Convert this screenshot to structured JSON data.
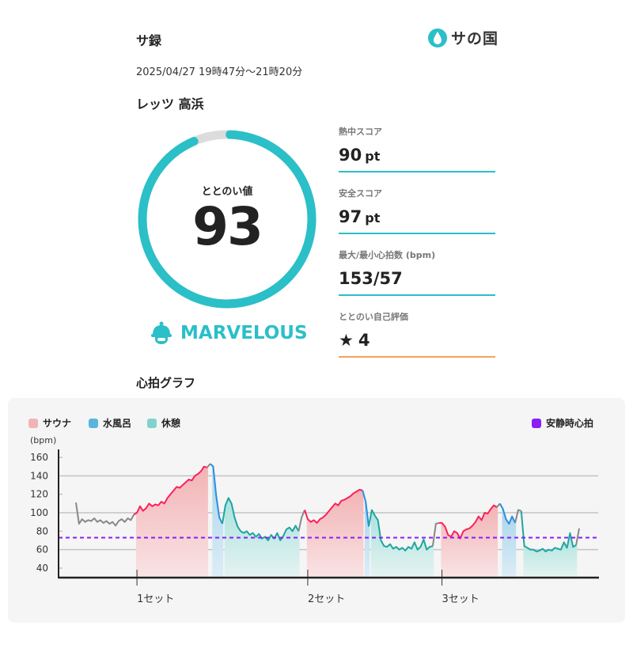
{
  "header": {
    "title": "サ録",
    "logo_text": "サの国",
    "logo_icon": "water-drop-icon"
  },
  "session": {
    "datetime": "2025/04/27 19時47分〜21時20分",
    "venue": "レッツ 高浜"
  },
  "totonoi": {
    "label": "ととのい値",
    "value": "93",
    "percent": 93,
    "rank": "MARVELOUS",
    "rank_icon": "sauna-hat-icon"
  },
  "stats": [
    {
      "label": "熱中スコア",
      "value": "90",
      "unit": "pt"
    },
    {
      "label": "安全スコア",
      "value": "97",
      "unit": "pt"
    },
    {
      "label": "最大/最小心拍数 (bpm)",
      "value": "153/57",
      "unit": ""
    },
    {
      "label": "ととのい自己評価",
      "value": "4",
      "unit": "",
      "icon": "star-icon"
    }
  ],
  "colors": {
    "accent": "#2bbfc8",
    "self_rating_line": "#f5a25d",
    "sauna": "#ff1f5a",
    "cold": "#2a8fe0",
    "rest": "#1fa5a0",
    "other": "#888888",
    "resting": "#8a1ef5"
  },
  "graph_title": "心拍グラフ",
  "chart_data": {
    "type": "line",
    "ylabel": "(bpm)",
    "ylim": [
      30,
      165
    ],
    "yticks": [
      160,
      140,
      120,
      100,
      80,
      60,
      40
    ],
    "grid_lines": [
      140,
      100,
      60
    ],
    "legend": [
      {
        "label": "サウナ",
        "color": "#f2b3b5"
      },
      {
        "label": "水風呂",
        "color": "#5ab4de"
      },
      {
        "label": "休憩",
        "color": "#7fd3cc"
      }
    ],
    "resting_hr": {
      "label": "安静時心拍",
      "value": 73,
      "color": "#8a1ef5"
    },
    "set_labels": [
      "1セット",
      "2セット",
      "3セット"
    ],
    "segments": [
      {
        "phase": "other",
        "values": [
          111,
          88,
          93,
          90,
          92,
          91,
          94,
          90,
          92,
          89,
          91,
          88,
          90,
          86,
          91,
          93,
          90,
          94,
          92,
          98
        ]
      },
      {
        "phase": "sauna",
        "set": 0,
        "values": [
          100,
          107,
          102,
          105,
          110,
          107,
          109,
          108,
          112,
          110,
          116,
          120,
          124,
          128,
          127,
          130,
          133,
          136,
          135,
          140,
          142,
          145,
          150,
          149
        ]
      },
      {
        "phase": "other",
        "values": [
          153
        ]
      },
      {
        "phase": "cold",
        "values": [
          150,
          118,
          95,
          88
        ]
      },
      {
        "phase": "rest",
        "values": [
          108,
          116,
          110,
          95,
          85,
          80,
          78,
          80,
          76,
          78,
          74,
          77,
          72,
          74,
          70,
          76,
          72,
          78,
          70,
          75,
          82,
          84,
          80,
          86,
          80
        ]
      },
      {
        "phase": "other",
        "values": [
          95,
          103
        ]
      },
      {
        "phase": "sauna",
        "set": 1,
        "values": [
          93,
          90,
          92,
          89,
          93,
          95,
          98,
          102,
          106,
          110,
          108,
          113,
          114,
          116,
          118,
          121,
          123,
          125,
          124
        ]
      },
      {
        "phase": "cold",
        "values": [
          112,
          85
        ]
      },
      {
        "phase": "rest",
        "values": [
          103,
          97,
          92,
          70,
          64,
          63,
          66,
          61,
          63,
          60,
          62,
          59,
          63,
          61,
          68,
          60,
          63,
          71,
          60,
          63,
          64
        ]
      },
      {
        "phase": "other",
        "values": [
          88,
          89
        ]
      },
      {
        "phase": "sauna",
        "set": 2,
        "values": [
          89,
          85,
          76,
          74,
          80,
          78,
          72,
          80,
          82,
          83,
          86,
          90,
          96,
          92,
          100,
          99,
          104,
          108,
          106
        ]
      },
      {
        "phase": "other",
        "values": [
          110
        ]
      },
      {
        "phase": "cold",
        "values": [
          104,
          93,
          88,
          96,
          89
        ]
      },
      {
        "phase": "other",
        "values": [
          103,
          102
        ]
      },
      {
        "phase": "rest",
        "values": [
          64,
          62,
          60,
          60,
          58,
          59,
          61,
          58,
          60,
          59,
          62,
          61,
          60,
          68,
          62,
          78,
          63,
          65
        ]
      },
      {
        "phase": "other",
        "values": [
          83
        ]
      }
    ]
  }
}
